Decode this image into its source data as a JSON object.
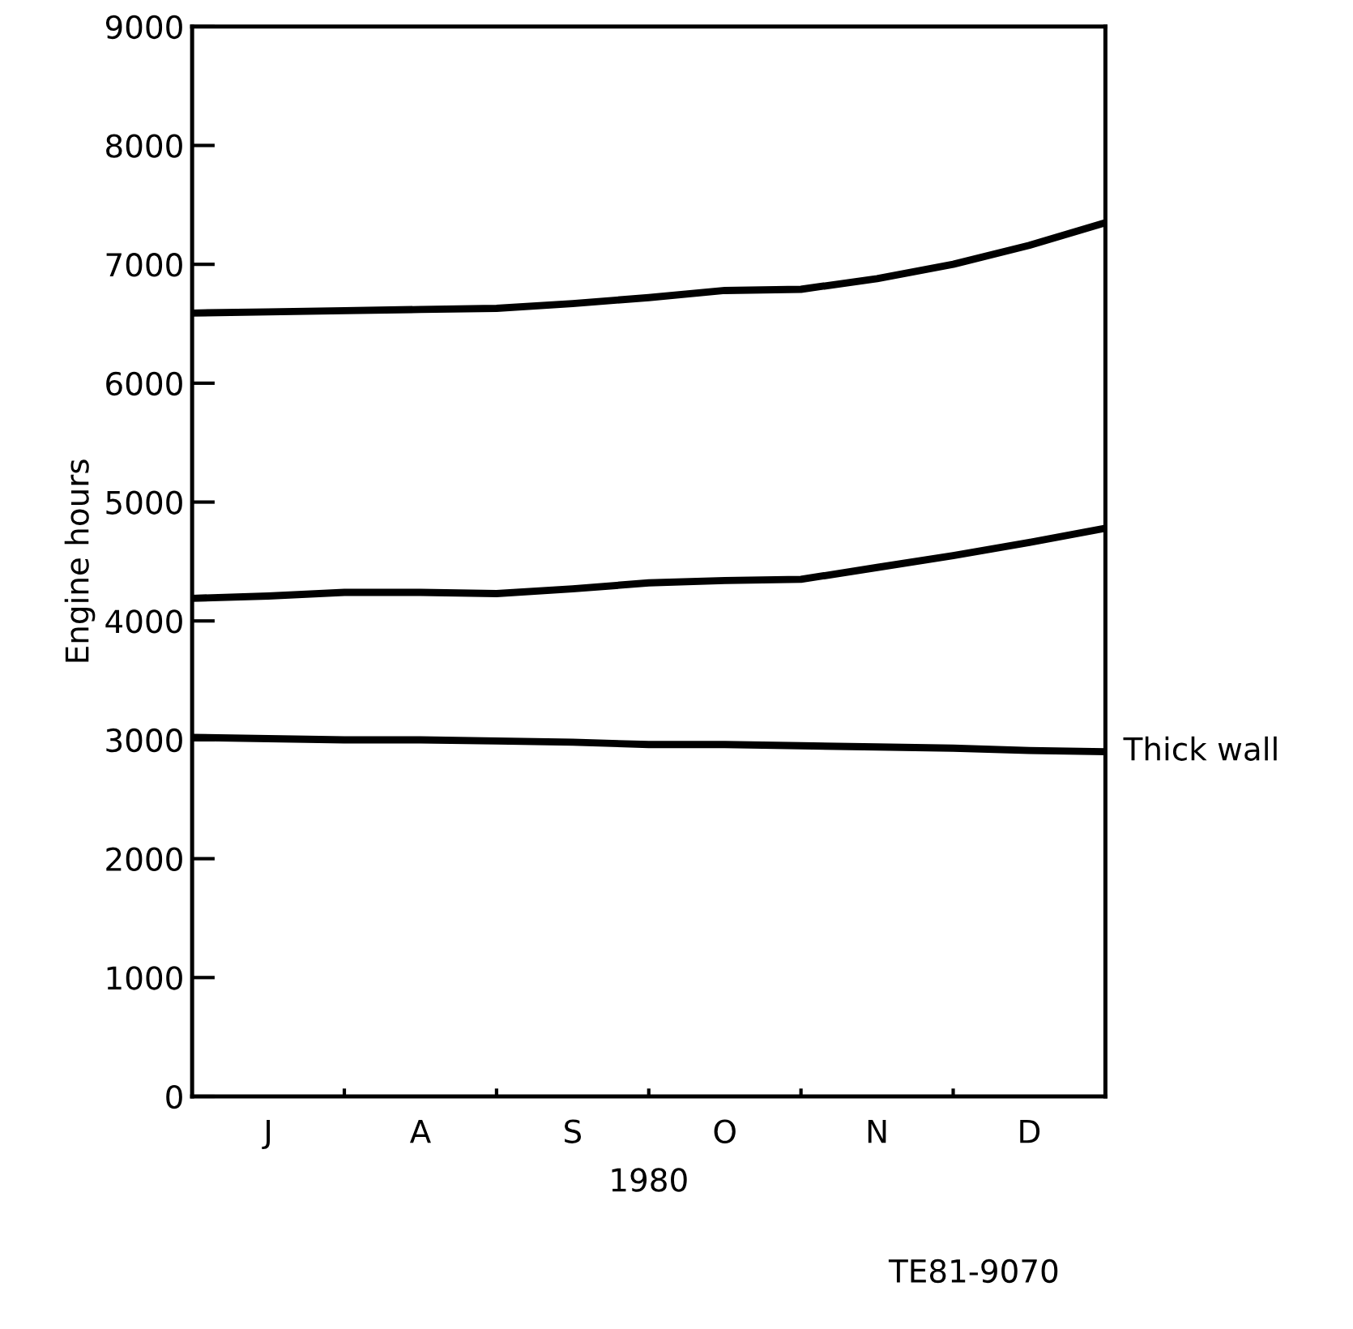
{
  "chart_data": {
    "type": "line",
    "xlabel": "1980",
    "ylabel": "Engine hours",
    "categories": [
      null,
      "J",
      null,
      "A",
      null,
      "S",
      null,
      "O",
      null,
      "N",
      null,
      "D",
      null
    ],
    "ylim": [
      0,
      9000
    ],
    "yticks": [
      0,
      1000,
      2000,
      3000,
      4000,
      5000,
      6000,
      7000,
      8000,
      9000
    ],
    "grid": false,
    "legend": false,
    "marker": "none",
    "line_style": "solid",
    "series": [
      {
        "color": "#000000",
        "values": [
          6590,
          6600,
          6610,
          6620,
          6630,
          6670,
          6720,
          6780,
          6790,
          6880,
          7000,
          7160,
          7350
        ]
      },
      {
        "color": "#000000",
        "values": [
          4190,
          4210,
          4240,
          4240,
          4230,
          4270,
          4320,
          4340,
          4350,
          4450,
          4550,
          4660,
          4780
        ]
      },
      {
        "name": "Thick wall",
        "color": "#000000",
        "values": [
          3020,
          3010,
          3000,
          3000,
          2990,
          2980,
          2960,
          2960,
          2950,
          2940,
          2930,
          2910,
          2900
        ]
      }
    ],
    "annotations": [
      "TE81-9070"
    ]
  }
}
